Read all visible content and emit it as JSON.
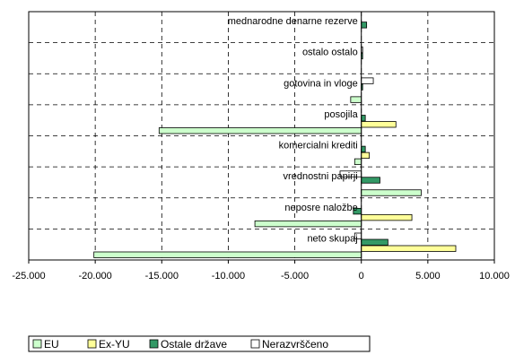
{
  "chart_data": {
    "type": "bar",
    "orientation": "horizontal",
    "categories": [
      "mednarodne denarne rezerve",
      "ostalo ostalo",
      "gotovina in vloge",
      "posojila",
      "komercialni krediti",
      "vrednostni papirji",
      "neposre naložbe",
      "neto skupaj"
    ],
    "series": [
      {
        "name": "EU",
        "color": "#ccffcc",
        "values": [
          0,
          0,
          -800,
          -15200,
          -500,
          4500,
          -8000,
          -20100
        ]
      },
      {
        "name": "Ex-YU",
        "color": "#ffff99",
        "values": [
          0,
          0,
          0,
          2600,
          600,
          0,
          3800,
          7100
        ]
      },
      {
        "name": "Ostale države",
        "color": "#339966",
        "values": [
          400,
          100,
          100,
          300,
          300,
          1400,
          -600,
          2000
        ]
      },
      {
        "name": "Nerazvrščeno",
        "color": "#ffffff",
        "values": [
          0,
          100,
          900,
          0,
          0,
          -1600,
          0,
          -500
        ]
      }
    ],
    "xlim": [
      -25000,
      10000
    ],
    "xticks": [
      "-25.000",
      "-20.000",
      "-15.000",
      "-10.000",
      "-5.000",
      "0",
      "5.000",
      "10.000"
    ],
    "xtick_values": [
      -25000,
      -20000,
      -15000,
      -10000,
      -5000,
      0,
      5000,
      10000
    ],
    "grid": true,
    "legend": "bottom-left"
  }
}
